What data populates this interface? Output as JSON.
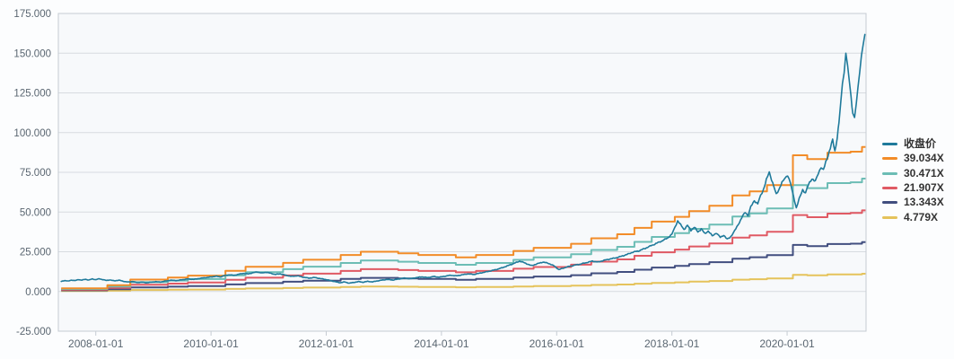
{
  "colors": {
    "page_bg": "#fcfdfe",
    "plot_bg": "#f7f9fb",
    "grid": "#d7dbe0",
    "border": "#c6ccd3",
    "axis_text": "#5a6671",
    "legend_text": "#333333"
  },
  "chart_data": {
    "type": "line",
    "title": "",
    "legend_position": "right",
    "grid": "horizontal",
    "x_axis": {
      "kind": "time-decimal-years",
      "range": [
        2007.35,
        2021.37
      ],
      "tick_values": [
        2008,
        2010,
        2012,
        2014,
        2016,
        2018,
        2020
      ],
      "tick_labels": [
        "2008-01-01",
        "2010-01-01",
        "2012-01-01",
        "2014-01-01",
        "2016-01-01",
        "2018-01-01",
        "2020-01-01"
      ]
    },
    "y_axis": {
      "range": [
        -25,
        175
      ],
      "tick_values": [
        175,
        150,
        125,
        100,
        75,
        50,
        25,
        0,
        -25
      ],
      "tick_labels": [
        "175.000",
        "150.000",
        "125.000",
        "100.000",
        "75.000",
        "50.000",
        "25.000",
        "0.000",
        "-25.000"
      ]
    },
    "base_steps": [
      [
        2007.4,
        0.051
      ],
      [
        2008.2,
        0.102
      ],
      [
        2008.6,
        0.192
      ],
      [
        2009.25,
        0.225
      ],
      [
        2009.6,
        0.256
      ],
      [
        2010.25,
        0.333
      ],
      [
        2010.6,
        0.397
      ],
      [
        2011.25,
        0.461
      ],
      [
        2011.6,
        0.512
      ],
      [
        2012.25,
        0.589
      ],
      [
        2012.6,
        0.64
      ],
      [
        2013.25,
        0.615
      ],
      [
        2013.6,
        0.589
      ],
      [
        2014.25,
        0.551
      ],
      [
        2014.6,
        0.589
      ],
      [
        2015.25,
        0.653
      ],
      [
        2015.6,
        0.704
      ],
      [
        2016.25,
        0.769
      ],
      [
        2016.6,
        0.858
      ],
      [
        2017.05,
        0.922
      ],
      [
        2017.35,
        1.025
      ],
      [
        2017.65,
        1.127
      ],
      [
        2018.05,
        1.204
      ],
      [
        2018.3,
        1.294
      ],
      [
        2018.65,
        1.382
      ],
      [
        2019.05,
        1.549
      ],
      [
        2019.35,
        1.614
      ],
      [
        2019.65,
        1.716
      ],
      [
        2020.1,
        2.196
      ],
      [
        2020.35,
        2.135
      ],
      [
        2020.7,
        2.238
      ],
      [
        2021.1,
        2.255
      ],
      [
        2021.3,
        2.331
      ]
    ],
    "bands_end": 2021.36,
    "series": [
      {
        "name": "收盘价",
        "type": "price-line",
        "color": "#1f7a9b",
        "points": [
          [
            2007.4,
            6.3
          ],
          [
            2007.46,
            6.9
          ],
          [
            2007.52,
            6.5
          ],
          [
            2007.58,
            7.2
          ],
          [
            2007.64,
            6.8
          ],
          [
            2007.7,
            7.5
          ],
          [
            2007.76,
            7.1
          ],
          [
            2007.82,
            7.7
          ],
          [
            2007.88,
            7.2
          ],
          [
            2007.94,
            7.9
          ],
          [
            2008.0,
            7.4
          ],
          [
            2008.06,
            8.0
          ],
          [
            2008.12,
            7.5
          ],
          [
            2008.18,
            6.9
          ],
          [
            2008.24,
            7.3
          ],
          [
            2008.32,
            6.7
          ],
          [
            2008.4,
            7.1
          ],
          [
            2008.48,
            6.4
          ],
          [
            2008.56,
            5.9
          ],
          [
            2008.64,
            6.3
          ],
          [
            2008.72,
            5.5
          ],
          [
            2008.8,
            5.9
          ],
          [
            2008.88,
            5.4
          ],
          [
            2008.96,
            5.8
          ],
          [
            2009.04,
            6.2
          ],
          [
            2009.12,
            5.9
          ],
          [
            2009.2,
            6.5
          ],
          [
            2009.3,
            7.1
          ],
          [
            2009.4,
            6.8
          ],
          [
            2009.5,
            7.4
          ],
          [
            2009.6,
            7.9
          ],
          [
            2009.7,
            7.6
          ],
          [
            2009.8,
            8.2
          ],
          [
            2009.9,
            8.7
          ],
          [
            2010.0,
            9.1
          ],
          [
            2010.08,
            9.6
          ],
          [
            2010.16,
            9.2
          ],
          [
            2010.24,
            10.0
          ],
          [
            2010.32,
            10.5
          ],
          [
            2010.4,
            10.1
          ],
          [
            2010.48,
            10.8
          ],
          [
            2010.56,
            11.4
          ],
          [
            2010.64,
            11.0
          ],
          [
            2010.72,
            11.7
          ],
          [
            2010.8,
            12.3
          ],
          [
            2010.88,
            11.6
          ],
          [
            2010.96,
            12.1
          ],
          [
            2011.04,
            11.4
          ],
          [
            2011.12,
            10.7
          ],
          [
            2011.2,
            11.1
          ],
          [
            2011.3,
            10.2
          ],
          [
            2011.4,
            9.5
          ],
          [
            2011.5,
            9.9
          ],
          [
            2011.6,
            9.0
          ],
          [
            2011.7,
            8.4
          ],
          [
            2011.8,
            8.8
          ],
          [
            2011.9,
            8.1
          ],
          [
            2012.0,
            7.5
          ],
          [
            2012.08,
            6.8
          ],
          [
            2012.16,
            6.1
          ],
          [
            2012.24,
            5.5
          ],
          [
            2012.32,
            6.0
          ],
          [
            2012.4,
            5.2
          ],
          [
            2012.48,
            5.7
          ],
          [
            2012.56,
            6.2
          ],
          [
            2012.64,
            5.8
          ],
          [
            2012.72,
            6.4
          ],
          [
            2012.8,
            6.0
          ],
          [
            2012.88,
            6.6
          ],
          [
            2012.96,
            7.1
          ],
          [
            2013.06,
            7.6
          ],
          [
            2013.16,
            7.2
          ],
          [
            2013.26,
            7.9
          ],
          [
            2013.36,
            8.4
          ],
          [
            2013.46,
            8.0
          ],
          [
            2013.56,
            8.7
          ],
          [
            2013.66,
            9.2
          ],
          [
            2013.76,
            8.7
          ],
          [
            2013.86,
            9.4
          ],
          [
            2013.96,
            9.0
          ],
          [
            2014.06,
            9.6
          ],
          [
            2014.16,
            10.2
          ],
          [
            2014.26,
            9.8
          ],
          [
            2014.36,
            10.5
          ],
          [
            2014.46,
            11.1
          ],
          [
            2014.56,
            10.7
          ],
          [
            2014.66,
            11.5
          ],
          [
            2014.76,
            12.2
          ],
          [
            2014.86,
            13.0
          ],
          [
            2014.96,
            13.9
          ],
          [
            2015.06,
            15.0
          ],
          [
            2015.16,
            16.3
          ],
          [
            2015.26,
            17.7
          ],
          [
            2015.36,
            19.1
          ],
          [
            2015.46,
            17.8
          ],
          [
            2015.56,
            16.2
          ],
          [
            2015.66,
            17.4
          ],
          [
            2015.76,
            18.5
          ],
          [
            2015.86,
            17.7
          ],
          [
            2015.96,
            16.0
          ],
          [
            2016.04,
            13.7
          ],
          [
            2016.12,
            14.8
          ],
          [
            2016.22,
            15.8
          ],
          [
            2016.32,
            16.6
          ],
          [
            2016.42,
            17.3
          ],
          [
            2016.52,
            18.2
          ],
          [
            2016.62,
            19.1
          ],
          [
            2016.72,
            18.5
          ],
          [
            2016.82,
            19.6
          ],
          [
            2016.92,
            20.4
          ],
          [
            2017.02,
            21.1
          ],
          [
            2017.12,
            22.1
          ],
          [
            2017.22,
            23.3
          ],
          [
            2017.32,
            24.7
          ],
          [
            2017.42,
            25.5
          ],
          [
            2017.52,
            26.9
          ],
          [
            2017.62,
            28.5
          ],
          [
            2017.72,
            30.1
          ],
          [
            2017.82,
            31.7
          ],
          [
            2017.92,
            33.5
          ],
          [
            2018.0,
            36.1
          ],
          [
            2018.05,
            40.1
          ],
          [
            2018.1,
            44.6
          ],
          [
            2018.15,
            42.0
          ],
          [
            2018.21,
            39.1
          ],
          [
            2018.27,
            41.5
          ],
          [
            2018.33,
            38.5
          ],
          [
            2018.39,
            40.4
          ],
          [
            2018.45,
            37.5
          ],
          [
            2018.51,
            39.3
          ],
          [
            2018.57,
            36.5
          ],
          [
            2018.63,
            38.0
          ],
          [
            2018.7,
            35.0
          ],
          [
            2018.77,
            36.9
          ],
          [
            2018.84,
            34.0
          ],
          [
            2018.9,
            35.5
          ],
          [
            2018.96,
            32.8
          ],
          [
            2019.02,
            34.5
          ],
          [
            2019.09,
            38.1
          ],
          [
            2019.15,
            42.2
          ],
          [
            2019.21,
            46.1
          ],
          [
            2019.27,
            50.0
          ],
          [
            2019.32,
            47.9
          ],
          [
            2019.37,
            53.1
          ],
          [
            2019.43,
            57.3
          ],
          [
            2019.49,
            55.1
          ],
          [
            2019.54,
            60.2
          ],
          [
            2019.59,
            64.4
          ],
          [
            2019.64,
            70.1
          ],
          [
            2019.69,
            75.2
          ],
          [
            2019.73,
            70.7
          ],
          [
            2019.77,
            65.8
          ],
          [
            2019.81,
            61.1
          ],
          [
            2019.86,
            64.6
          ],
          [
            2019.91,
            68.2
          ],
          [
            2019.96,
            71.3
          ],
          [
            2020.01,
            73.5
          ],
          [
            2020.06,
            67.7
          ],
          [
            2020.11,
            59.8
          ],
          [
            2020.16,
            52.7
          ],
          [
            2020.21,
            58.1
          ],
          [
            2020.27,
            64.2
          ],
          [
            2020.32,
            62.0
          ],
          [
            2020.37,
            67.1
          ],
          [
            2020.43,
            71.2
          ],
          [
            2020.49,
            69.1
          ],
          [
            2020.54,
            74.3
          ],
          [
            2020.59,
            78.5
          ],
          [
            2020.63,
            76.2
          ],
          [
            2020.67,
            81.4
          ],
          [
            2020.71,
            85.7
          ],
          [
            2020.75,
            90.1
          ],
          [
            2020.79,
            95.3
          ],
          [
            2020.83,
            88.5
          ],
          [
            2020.87,
            96.7
          ],
          [
            2020.9,
            106.2
          ],
          [
            2020.93,
            118.4
          ],
          [
            2020.96,
            131.3
          ],
          [
            2020.99,
            139.1
          ],
          [
            2021.02,
            149.5
          ],
          [
            2021.05,
            142.2
          ],
          [
            2021.08,
            131.5
          ],
          [
            2021.11,
            121.7
          ],
          [
            2021.14,
            112.3
          ],
          [
            2021.17,
            110.1
          ],
          [
            2021.2,
            118.5
          ],
          [
            2021.23,
            127.2
          ],
          [
            2021.26,
            137.7
          ],
          [
            2021.29,
            148.3
          ],
          [
            2021.32,
            155.6
          ],
          [
            2021.35,
            161.8
          ]
        ]
      },
      {
        "name": "39.034X",
        "type": "step-band",
        "color": "#f28c28",
        "multiplier": 39.034
      },
      {
        "name": "30.471X",
        "type": "step-band",
        "color": "#6cbdb5",
        "multiplier": 30.471
      },
      {
        "name": "21.907X",
        "type": "step-band",
        "color": "#e05a64",
        "multiplier": 21.907
      },
      {
        "name": "13.343X",
        "type": "step-band",
        "color": "#414e7f",
        "multiplier": 13.343
      },
      {
        "name": "4.779X",
        "type": "step-band",
        "color": "#e5c35b",
        "multiplier": 4.779
      }
    ]
  }
}
